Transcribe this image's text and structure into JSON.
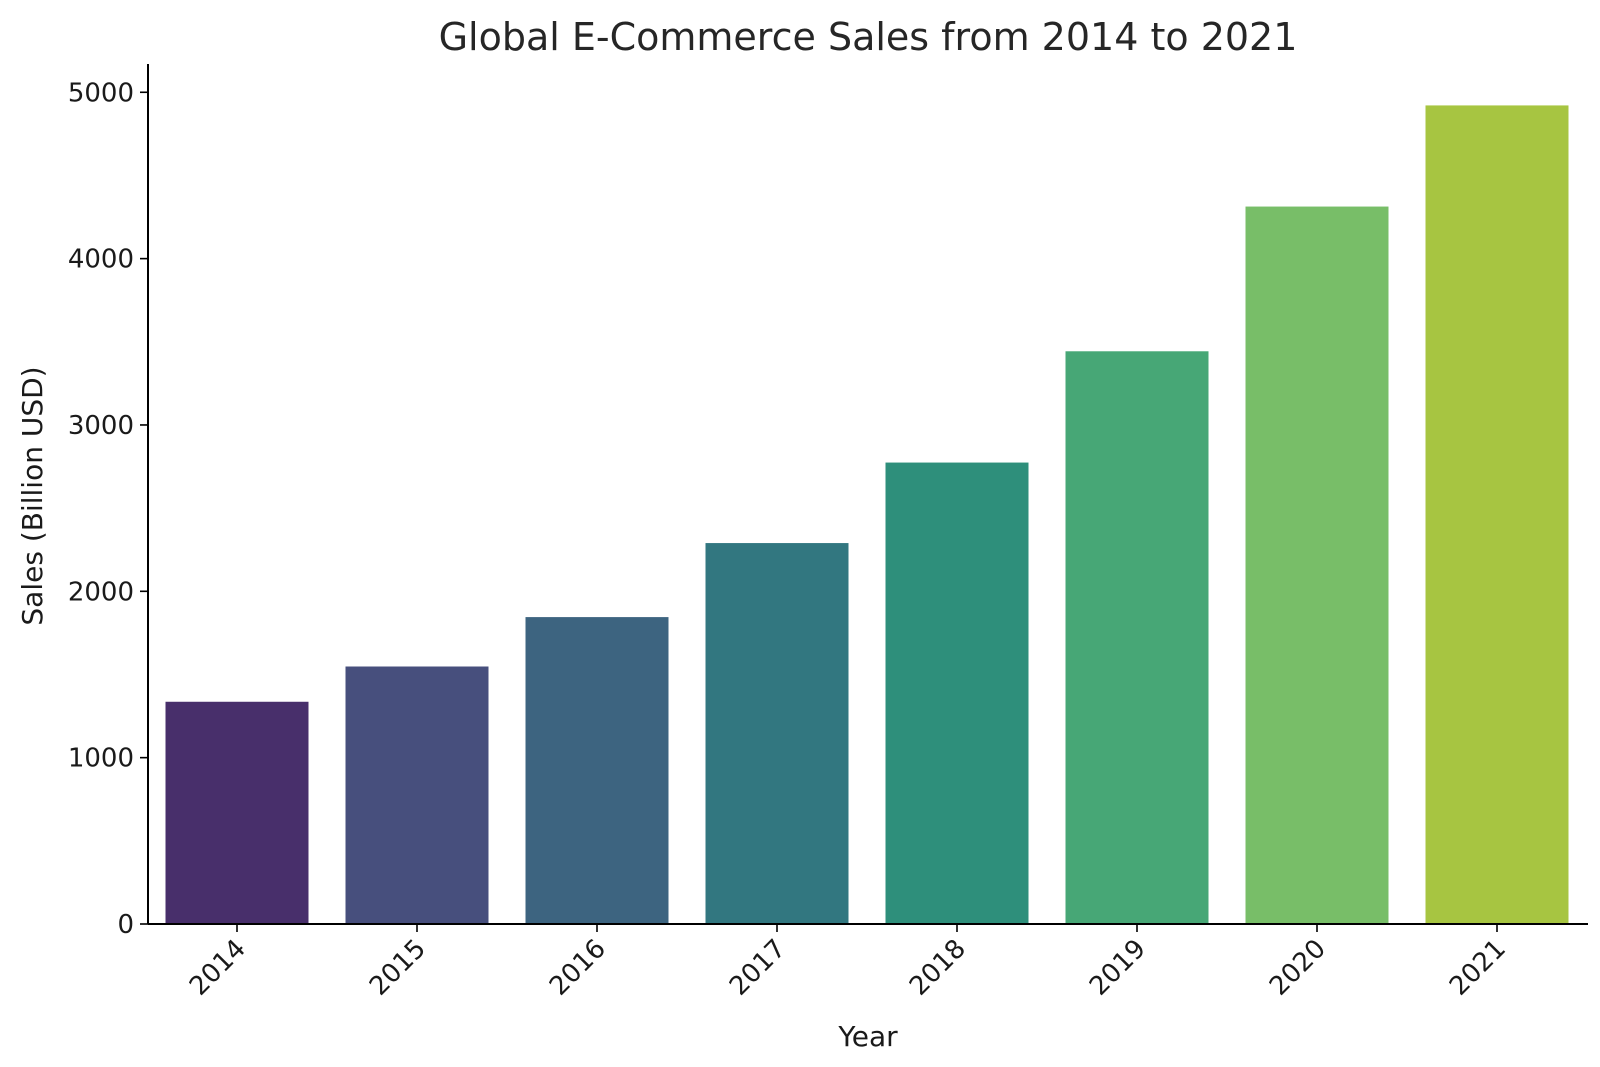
{
  "chart_data": {
    "type": "bar",
    "title": "Global E-Commerce Sales from 2014 to 2021",
    "xlabel": "Year",
    "ylabel": "Sales (Billion USD)",
    "categories": [
      "2014",
      "2015",
      "2016",
      "2017",
      "2018",
      "2019",
      "2020",
      "2021"
    ],
    "values": [
      1336,
      1548,
      1845,
      2290,
      2774,
      3443,
      4313,
      4921
    ],
    "colors": [
      "#482f6b",
      "#474f7d",
      "#3d6480",
      "#327780",
      "#2e8f7b",
      "#47a776",
      "#78be68",
      "#a7c541"
    ],
    "ylim": [
      0,
      5170
    ],
    "yticks": [
      0,
      1000,
      2000,
      3000,
      4000,
      5000
    ],
    "grid": false,
    "legend": "none"
  }
}
